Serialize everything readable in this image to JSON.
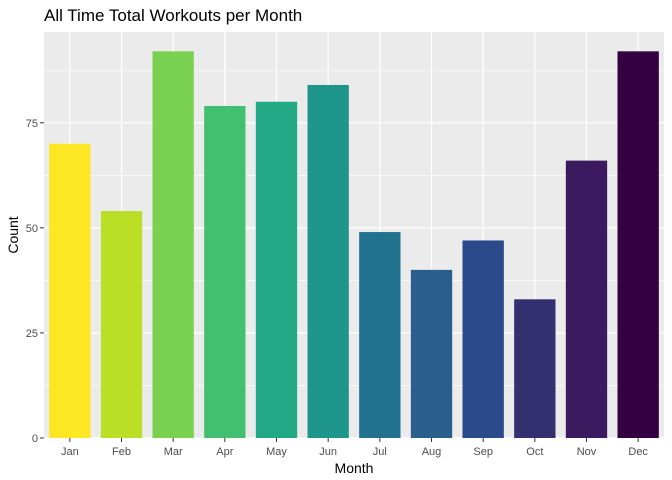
{
  "chart_data": {
    "type": "bar",
    "title": "All Time Total Workouts per Month",
    "xlabel": "Month",
    "ylabel": "Count",
    "categories": [
      "Jan",
      "Feb",
      "Mar",
      "Apr",
      "May",
      "Jun",
      "Jul",
      "Aug",
      "Sep",
      "Oct",
      "Nov",
      "Dec"
    ],
    "values": [
      70,
      54,
      92,
      79,
      80,
      84,
      49,
      40,
      47,
      33,
      66,
      92
    ],
    "colors": [
      "#FDE725",
      "#BBDF27",
      "#7AD151",
      "#43BF71",
      "#22A884",
      "#1F968B",
      "#21728E",
      "#2A5E8C",
      "#2A4A8B",
      "#32306F",
      "#3B1A60",
      "#340042"
    ],
    "ylim": [
      0,
      96.6
    ],
    "yticks": [
      0,
      25,
      50,
      75
    ],
    "grid": true,
    "legend": "none",
    "panel_background": "#EBEBEB",
    "grid_color": "#FFFFFF"
  }
}
